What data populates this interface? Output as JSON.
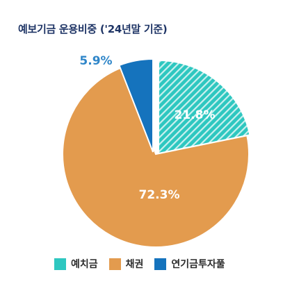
{
  "title": "예보기금 운용비중 ('24년말 기준)",
  "chart_data": {
    "type": "pie",
    "title": "예보기금 운용비중 ('24년말 기준)",
    "slices": [
      {
        "label": "예치금",
        "value": 21.8,
        "display": "21.8%",
        "color": "#2ec7c0",
        "pattern": "diagonal-stripes",
        "exploded": true
      },
      {
        "label": "채권",
        "value": 72.3,
        "display": "72.3%",
        "color": "#e39b4e",
        "pattern": "solid",
        "exploded": false
      },
      {
        "label": "연기금투자풀",
        "value": 5.9,
        "display": "5.9%",
        "color": "#1573bd",
        "pattern": "solid",
        "exploded": true
      }
    ],
    "legend": "bottom"
  }
}
